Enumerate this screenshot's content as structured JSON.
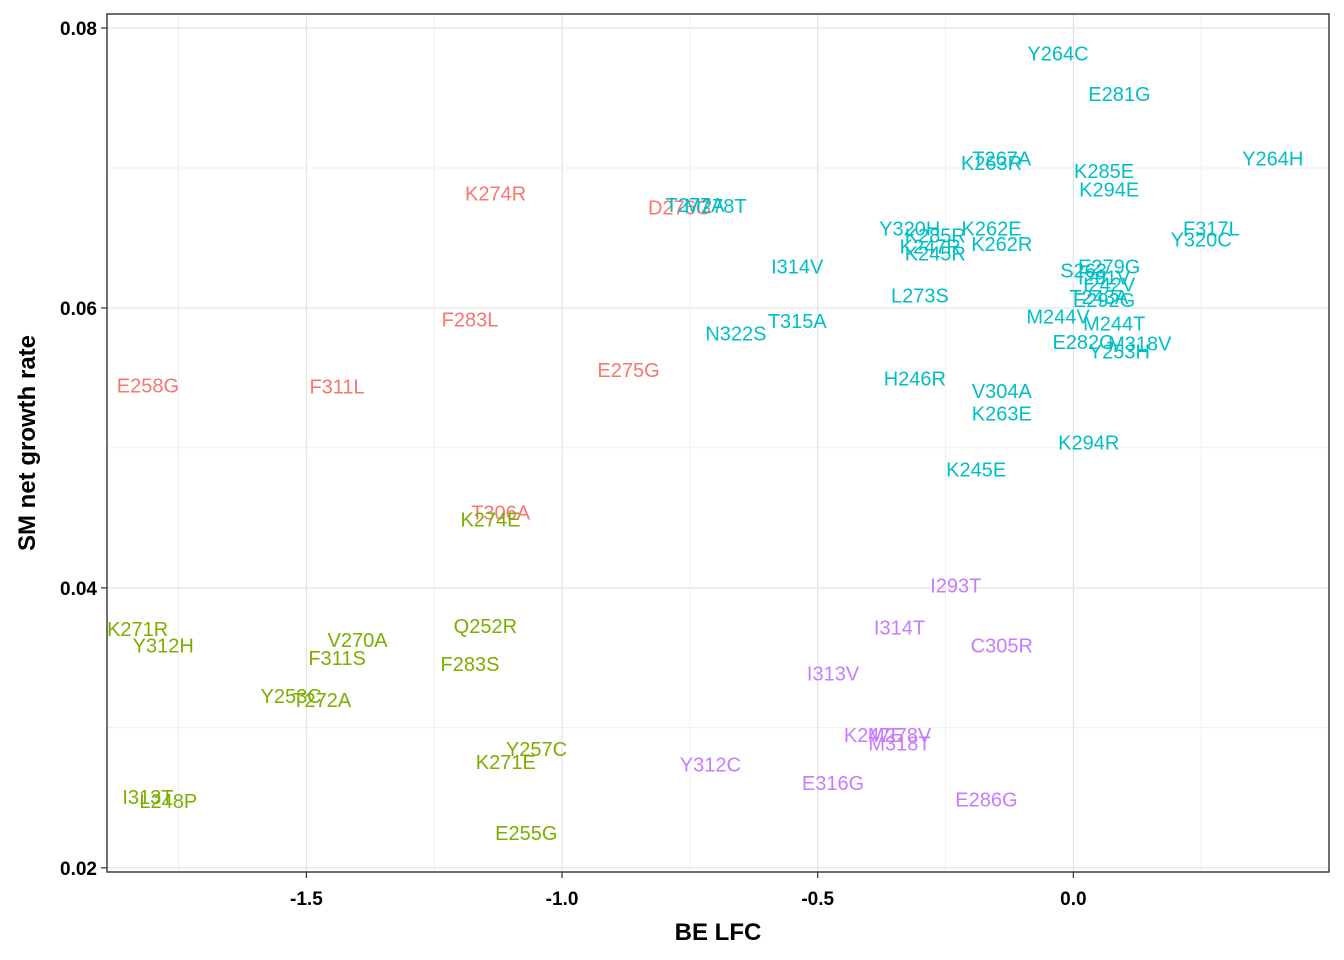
{
  "chart_data": {
    "type": "scatter",
    "title": "",
    "xlabel": "BE LFC",
    "ylabel": "SM net growth rate",
    "xlim": [
      -1.89,
      0.5
    ],
    "ylim": [
      0.0197,
      0.081
    ],
    "x_ticks": [
      -1.5,
      -1.0,
      -0.5,
      0.0
    ],
    "x_tick_labels": [
      "-1.5",
      "-1.0",
      "-0.5",
      "0.0"
    ],
    "y_ticks": [
      0.02,
      0.04,
      0.06,
      0.08
    ],
    "y_tick_labels": [
      "0.02",
      "0.04",
      "0.06",
      "0.08"
    ],
    "grid": true,
    "legend": "none",
    "series": [
      {
        "name": "red",
        "color": "#f8766d",
        "points": [
          {
            "label": "E258G",
            "x": -1.81,
            "y": 0.0544
          },
          {
            "label": "F311L",
            "x": -1.44,
            "y": 0.0543
          },
          {
            "label": "K274R",
            "x": -1.13,
            "y": 0.0681
          },
          {
            "label": "F283L",
            "x": -1.18,
            "y": 0.0591
          },
          {
            "label": "E275G",
            "x": -0.87,
            "y": 0.0555
          },
          {
            "label": "D276G",
            "x": -0.77,
            "y": 0.0671
          },
          {
            "label": "T306A",
            "x": -1.12,
            "y": 0.0453
          }
        ]
      },
      {
        "name": "green",
        "color": "#7cae00",
        "points": [
          {
            "label": "K271R",
            "x": -1.83,
            "y": 0.037
          },
          {
            "label": "Y312H",
            "x": -1.78,
            "y": 0.0358
          },
          {
            "label": "V270A",
            "x": -1.4,
            "y": 0.0362
          },
          {
            "label": "F311S",
            "x": -1.44,
            "y": 0.0349
          },
          {
            "label": "Y253C",
            "x": -1.53,
            "y": 0.0322
          },
          {
            "label": "T272A",
            "x": -1.47,
            "y": 0.0319
          },
          {
            "label": "K274E",
            "x": -1.14,
            "y": 0.0448
          },
          {
            "label": "Q252R",
            "x": -1.15,
            "y": 0.0372
          },
          {
            "label": "F283S",
            "x": -1.18,
            "y": 0.0345
          },
          {
            "label": "Y257C",
            "x": -1.05,
            "y": 0.0284
          },
          {
            "label": "K271E",
            "x": -1.11,
            "y": 0.0275
          },
          {
            "label": "I313T",
            "x": -1.81,
            "y": 0.025
          },
          {
            "label": "L248P",
            "x": -1.77,
            "y": 0.0247
          },
          {
            "label": "E255G",
            "x": -1.07,
            "y": 0.0224
          }
        ]
      },
      {
        "name": "teal",
        "color": "#00bfc4",
        "points": [
          {
            "label": "Y264C",
            "x": -0.03,
            "y": 0.0781
          },
          {
            "label": "E281G",
            "x": 0.09,
            "y": 0.0752
          },
          {
            "label": "T267A",
            "x": -0.14,
            "y": 0.0706
          },
          {
            "label": "K263R",
            "x": -0.16,
            "y": 0.0703
          },
          {
            "label": "K285E",
            "x": 0.06,
            "y": 0.0697
          },
          {
            "label": "K294E",
            "x": 0.07,
            "y": 0.0684
          },
          {
            "label": "Y264H",
            "x": 0.39,
            "y": 0.0706
          },
          {
            "label": "T277A",
            "x": -0.74,
            "y": 0.0673
          },
          {
            "label": "M278T",
            "x": -0.7,
            "y": 0.0672
          },
          {
            "label": "Y320H",
            "x": -0.32,
            "y": 0.0656
          },
          {
            "label": "K262E",
            "x": -0.16,
            "y": 0.0656
          },
          {
            "label": "K285R",
            "x": -0.27,
            "y": 0.0651
          },
          {
            "label": "K247R",
            "x": -0.28,
            "y": 0.0643
          },
          {
            "label": "K245R",
            "x": -0.27,
            "y": 0.0638
          },
          {
            "label": "K262R",
            "x": -0.14,
            "y": 0.0645
          },
          {
            "label": "F317L",
            "x": 0.27,
            "y": 0.0656
          },
          {
            "label": "Y320C",
            "x": 0.25,
            "y": 0.0648
          },
          {
            "label": "I314V",
            "x": -0.54,
            "y": 0.0629
          },
          {
            "label": "S263",
            "x": 0.02,
            "y": 0.0626
          },
          {
            "label": "E279G",
            "x": 0.07,
            "y": 0.0629
          },
          {
            "label": "L273S",
            "x": -0.3,
            "y": 0.0608
          },
          {
            "label": "I291V",
            "x": 0.06,
            "y": 0.0621
          },
          {
            "label": "I242V",
            "x": 0.07,
            "y": 0.0616
          },
          {
            "label": "T243A",
            "x": 0.05,
            "y": 0.0607
          },
          {
            "label": "E292G",
            "x": 0.06,
            "y": 0.0605
          },
          {
            "label": "T315A",
            "x": -0.54,
            "y": 0.059
          },
          {
            "label": "N322S",
            "x": -0.66,
            "y": 0.0581
          },
          {
            "label": "M244V",
            "x": -0.03,
            "y": 0.0593
          },
          {
            "label": "M244T",
            "x": 0.08,
            "y": 0.0588
          },
          {
            "label": "E282G",
            "x": 0.02,
            "y": 0.0575
          },
          {
            "label": "M318V",
            "x": 0.13,
            "y": 0.0574
          },
          {
            "label": "Y253H",
            "x": 0.09,
            "y": 0.0568
          },
          {
            "label": "H246R",
            "x": -0.31,
            "y": 0.0549
          },
          {
            "label": "V304A",
            "x": -0.14,
            "y": 0.054
          },
          {
            "label": "K263E",
            "x": -0.14,
            "y": 0.0524
          },
          {
            "label": "K294R",
            "x": 0.03,
            "y": 0.0503
          },
          {
            "label": "K245E",
            "x": -0.19,
            "y": 0.0484
          }
        ]
      },
      {
        "name": "purple",
        "color": "#c77cff",
        "points": [
          {
            "label": "I293T",
            "x": -0.23,
            "y": 0.0401
          },
          {
            "label": "I314T",
            "x": -0.34,
            "y": 0.0371
          },
          {
            "label": "C305R",
            "x": -0.14,
            "y": 0.0358
          },
          {
            "label": "I313V",
            "x": -0.47,
            "y": 0.0338
          },
          {
            "label": "K247E",
            "x": -0.39,
            "y": 0.0294
          },
          {
            "label": "M278V",
            "x": -0.34,
            "y": 0.0294
          },
          {
            "label": "M318T",
            "x": -0.34,
            "y": 0.0288
          },
          {
            "label": "Y312C",
            "x": -0.71,
            "y": 0.0273
          },
          {
            "label": "E316G",
            "x": -0.47,
            "y": 0.026
          },
          {
            "label": "E286G",
            "x": -0.17,
            "y": 0.0248
          }
        ]
      }
    ]
  }
}
